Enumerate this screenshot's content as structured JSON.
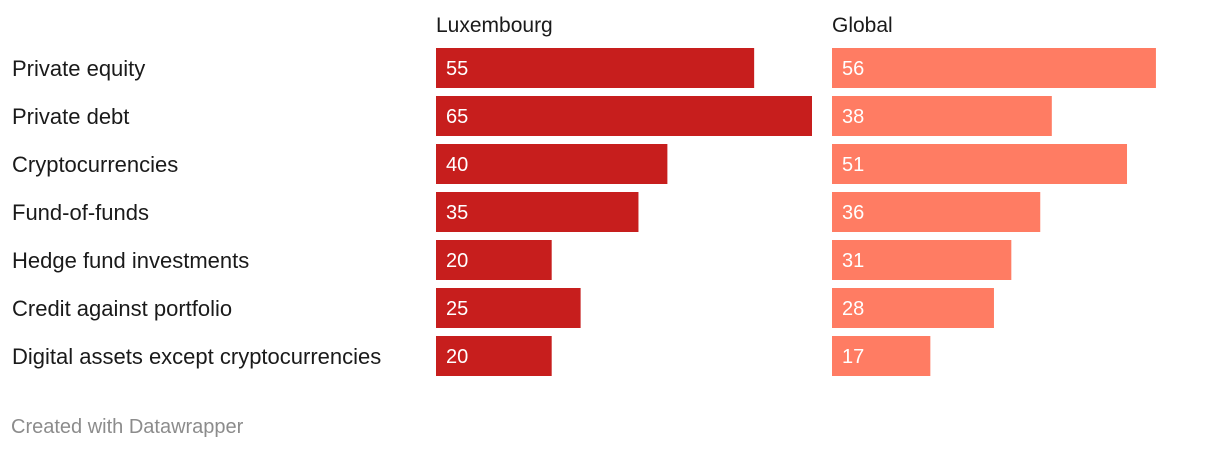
{
  "chart_data": {
    "type": "bar",
    "orientation": "horizontal",
    "categories": [
      "Private equity",
      "Private debt",
      "Cryptocurrencies",
      "Fund-of-funds",
      "Hedge fund investments",
      "Credit against portfolio",
      "Digital assets except cryptocurrencies"
    ],
    "series": [
      {
        "name": "Luxembourg",
        "values": [
          55,
          65,
          40,
          35,
          20,
          25,
          20
        ],
        "color": "#c71e1d"
      },
      {
        "name": "Global",
        "values": [
          56,
          38,
          51,
          36,
          31,
          28,
          17
        ],
        "color": "#ff7c63"
      }
    ],
    "xlim": [
      0,
      65
    ],
    "grid": false,
    "legend": "none",
    "data_labels": true
  },
  "footer": {
    "credit": "Created with Datawrapper"
  }
}
